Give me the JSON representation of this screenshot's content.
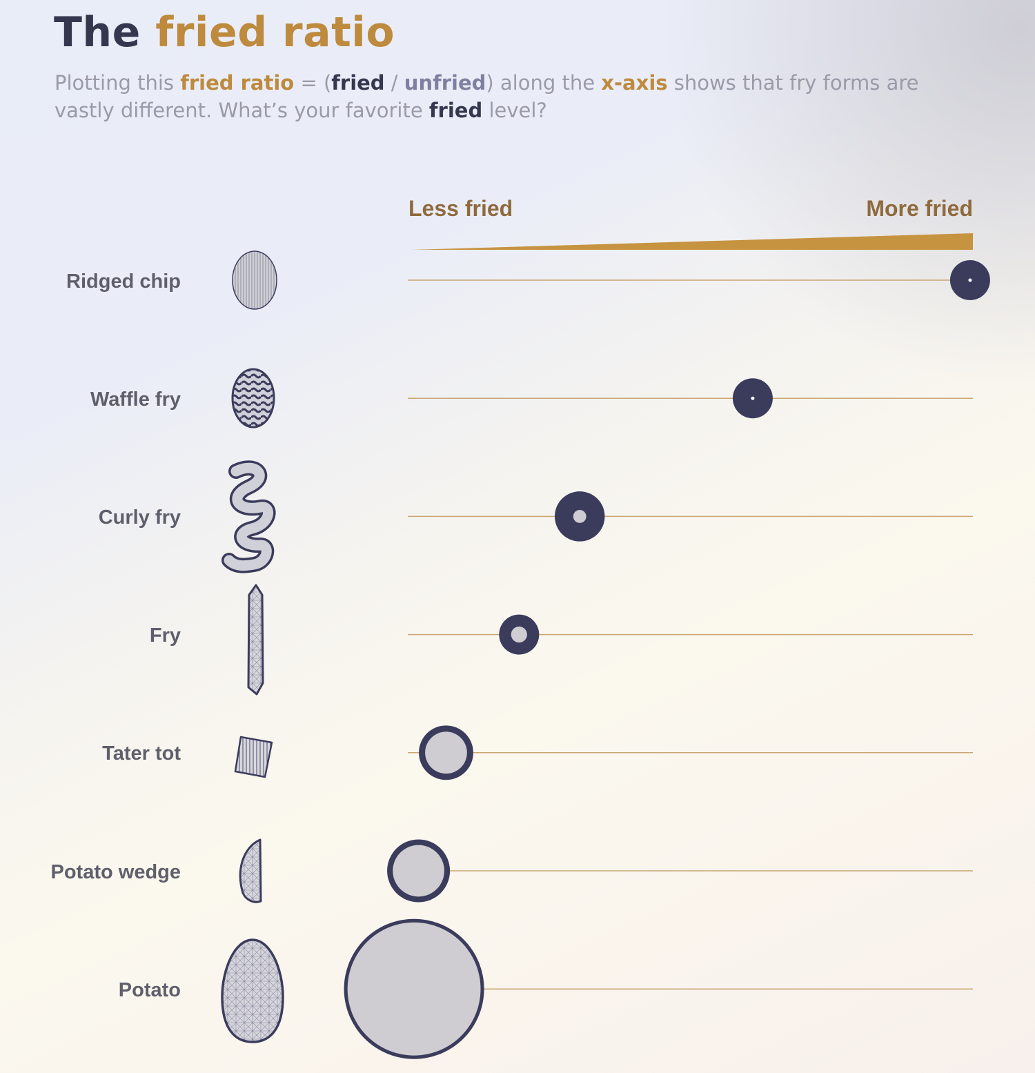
{
  "header": {
    "title_prefix": "The",
    "title_highlight": "fried ratio",
    "subtitle": {
      "t1": "Plotting this",
      "t2": "fried ratio",
      "t3": "= (",
      "t4": "fried",
      "t5": "/",
      "t6": "unfried",
      "t7": ") along the",
      "t8": "x-axis",
      "t9": "shows that fry forms are vastly different. What’s your favorite",
      "t10": "fried",
      "t11": "level?"
    }
  },
  "colors": {
    "accent_gold": "#bd8a3e",
    "dot_navy": "#3b3c5c",
    "dot_fill": "#cfcdd2",
    "line": "#c9a672"
  },
  "chart_data": {
    "type": "scatter",
    "x_axis": {
      "low_label": "Less fried",
      "high_label": "More fried",
      "xlim": [
        0,
        1
      ]
    },
    "rows": [
      {
        "name": "Ridged chip",
        "icon": "ridged-chip-icon",
        "x": 0.995,
        "outer_size": 1.0,
        "fried_share": 0.98
      },
      {
        "name": "Waffle fry",
        "icon": "waffle-fry-icon",
        "x": 0.608,
        "outer_size": 1.0,
        "fried_share": 0.93
      },
      {
        "name": "Curly fry",
        "icon": "curly-fry-icon",
        "x": 0.3,
        "outer_size": 1.25,
        "fried_share": 0.74
      },
      {
        "name": "Fry",
        "icon": "fry-icon",
        "x": 0.192,
        "outer_size": 1.0,
        "fried_share": 0.6
      },
      {
        "name": "Tater tot",
        "icon": "tater-tot-icon",
        "x": 0.062,
        "outer_size": 1.36,
        "fried_share": 0.23
      },
      {
        "name": "Potato wedge",
        "icon": "potato-wedge-icon",
        "x": 0.013,
        "outer_size": 1.57,
        "fried_share": 0.18
      },
      {
        "name": "Potato",
        "icon": "potato-icon",
        "x": 0.005,
        "outer_size": 3.5,
        "fried_share": 0.05
      }
    ]
  }
}
